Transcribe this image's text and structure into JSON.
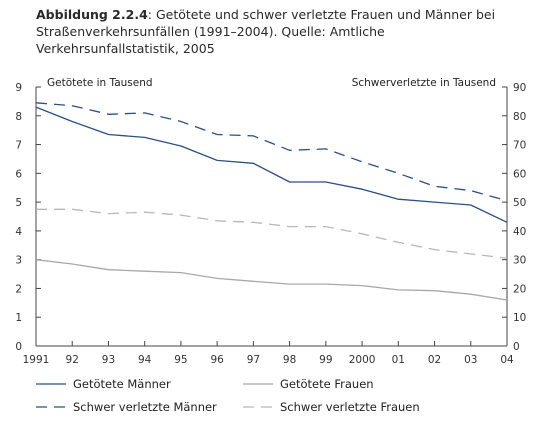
{
  "caption": {
    "label": "Abbildung 2.2.4",
    "text": ": Getötete und schwer verletzte Frauen und Männer bei Straßenverkehrsunfällen (1991–2004). Quelle: Amtliche Verkehrsunfallstatistik, 2005"
  },
  "chart_data": {
    "type": "line",
    "categories": [
      "1991",
      "92",
      "93",
      "94",
      "95",
      "96",
      "97",
      "98",
      "99",
      "2000",
      "01",
      "02",
      "03",
      "04"
    ],
    "y_left": {
      "label": "Getötete in Tausend",
      "ylim": [
        0,
        9
      ],
      "ticks": [
        0,
        1,
        2,
        3,
        4,
        5,
        6,
        7,
        8,
        9
      ]
    },
    "y_right": {
      "label": "Schwerverletzte in Tausend",
      "ylim": [
        0,
        90
      ],
      "ticks": [
        0,
        10,
        20,
        30,
        40,
        50,
        60,
        70,
        80,
        90
      ]
    },
    "grid": false,
    "legend_position": "bottom",
    "series": [
      {
        "name": "Getötete Männer",
        "axis": "left",
        "color": "#2b4f8a",
        "dash": "solid",
        "values": [
          8.3,
          7.8,
          7.35,
          7.25,
          6.95,
          6.45,
          6.35,
          5.7,
          5.7,
          5.45,
          5.1,
          5.0,
          4.9,
          4.3
        ]
      },
      {
        "name": "Getötete Frauen",
        "axis": "left",
        "color": "#a8a8a8",
        "dash": "solid",
        "values": [
          3.0,
          2.85,
          2.65,
          2.6,
          2.55,
          2.35,
          2.25,
          2.15,
          2.15,
          2.1,
          1.95,
          1.92,
          1.8,
          1.6
        ]
      },
      {
        "name": "Schwer verletzte Männer",
        "axis": "right",
        "color": "#2b4f8a",
        "dash": "dashed",
        "values": [
          84.5,
          83.5,
          80.5,
          81,
          78,
          73.5,
          73,
          68,
          68.5,
          64,
          60,
          55.5,
          54,
          50.5
        ]
      },
      {
        "name": "Schwer verletzte Frauen",
        "axis": "right",
        "color": "#b8b8b8",
        "dash": "dashed",
        "values": [
          47.5,
          47.5,
          46,
          46.5,
          45.5,
          43.5,
          43,
          41.5,
          41.5,
          39,
          36,
          33.5,
          32,
          30.5
        ]
      }
    ]
  }
}
